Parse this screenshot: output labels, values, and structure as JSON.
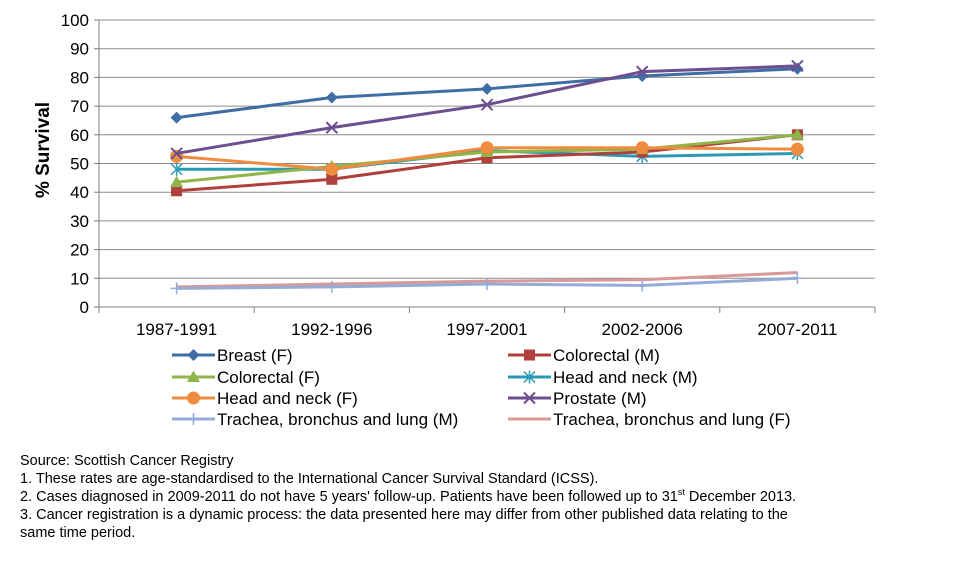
{
  "chart_data": {
    "type": "line",
    "ylabel": "% Survival",
    "xlabel": "",
    "title": "",
    "ylim": [
      0,
      100
    ],
    "yticks": [
      0,
      10,
      20,
      30,
      40,
      50,
      60,
      70,
      80,
      90,
      100
    ],
    "grid": "horizontal",
    "legend_placement": "below",
    "categories": [
      "1987-1991",
      "1992-1996",
      "1997-2001",
      "2002-2006",
      "2007-2011"
    ],
    "series": [
      {
        "name": "Breast (F)",
        "color": "#3e6ea5",
        "marker": "diamond",
        "values": [
          66,
          73,
          76,
          80.5,
          83
        ]
      },
      {
        "name": "Colorectal (M)",
        "color": "#b0403b",
        "marker": "square",
        "values": [
          40.5,
          44.5,
          52,
          54,
          60
        ]
      },
      {
        "name": "Colorectal (F)",
        "color": "#8fb44a",
        "marker": "triangle",
        "values": [
          43.5,
          49,
          54,
          55,
          60
        ]
      },
      {
        "name": "Head and neck (M)",
        "color": "#2b9bb5",
        "marker": "asterisk",
        "values": [
          48,
          48,
          54.5,
          52.5,
          53.5
        ]
      },
      {
        "name": "Head and neck (F)",
        "color": "#ef8c3f",
        "marker": "circle",
        "values": [
          52.5,
          48,
          55.5,
          55.5,
          55
        ]
      },
      {
        "name": "Prostate (M)",
        "color": "#6d4f8f",
        "marker": "x",
        "values": [
          53.5,
          62.5,
          70.5,
          82,
          84
        ]
      },
      {
        "name": "Trachea, bronchus and lung (M)",
        "color": "#94acd6",
        "marker": "plus",
        "values": [
          6.5,
          7,
          8,
          7.5,
          10
        ]
      },
      {
        "name": "Trachea, bronchus and lung (F)",
        "color": "#db9898",
        "marker": "none",
        "values": [
          7,
          8,
          9,
          9.5,
          12
        ]
      }
    ]
  },
  "notes": {
    "source": "Source: Scottish Cancer Registry",
    "note1": "1. These rates are age-standardised to the International Cancer Survival Standard (ICSS).",
    "note2_main": "2. Cases diagnosed in 2009-2011 do not have 5 years' follow-up. Patients have been followed up to 31",
    "note2_sup": "st",
    "note2_end": " December 2013.",
    "note3_line1": "3. Cancer registration is a dynamic process: the data presented here may differ from other published data relating to the",
    "note3_line2": "same time period."
  }
}
